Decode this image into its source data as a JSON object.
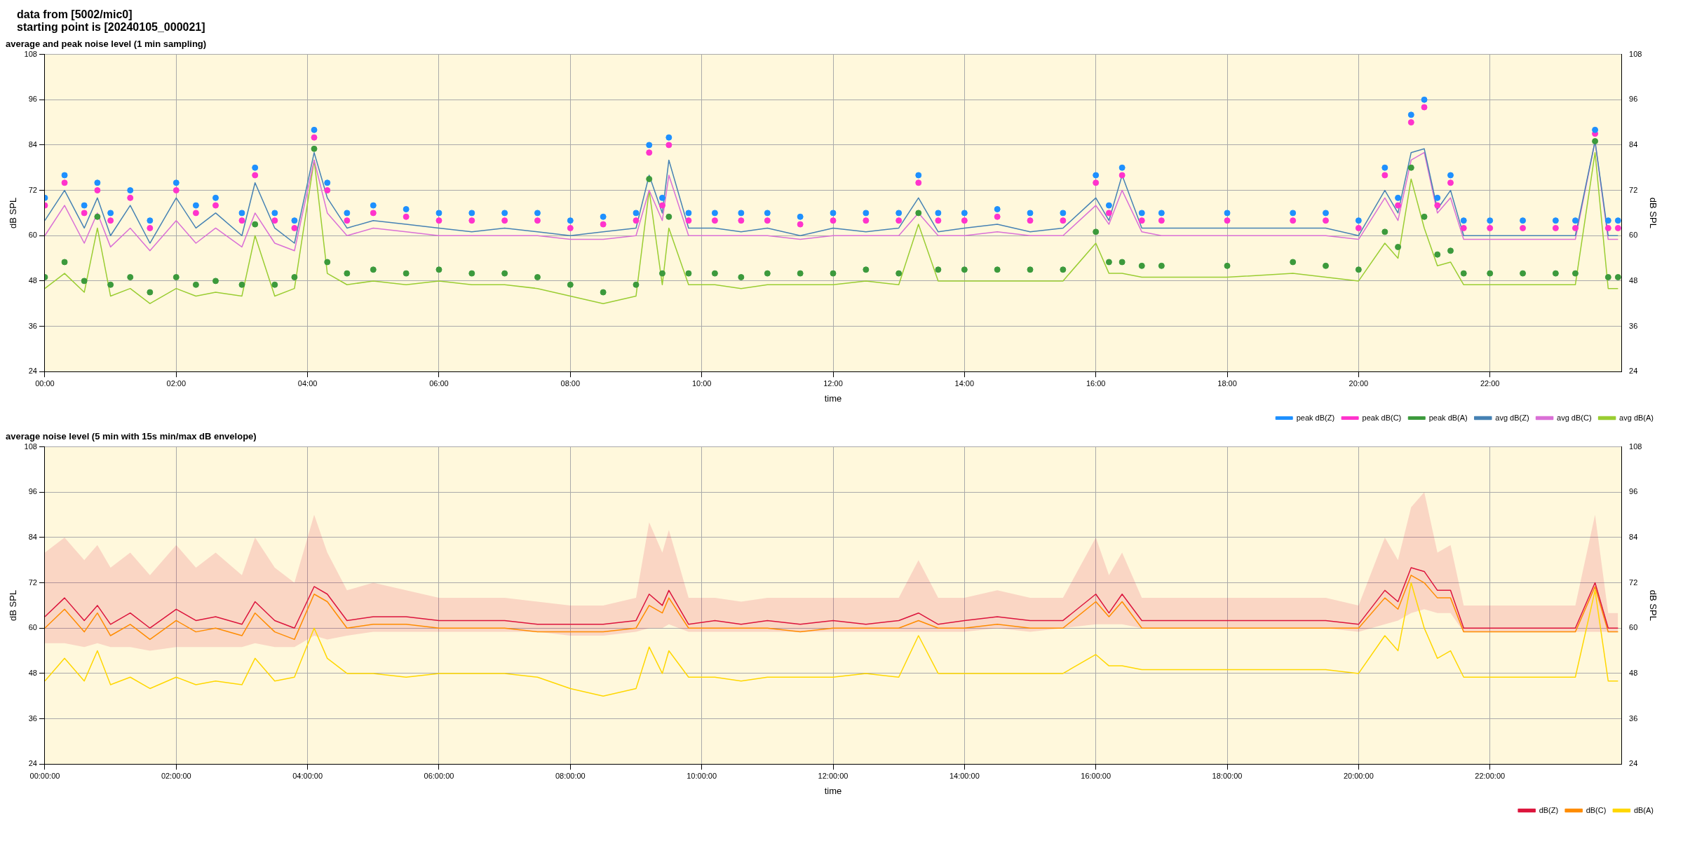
{
  "chart_data": [
    {
      "type": "line",
      "title": "average and peak noise level (1 min sampling)",
      "annotations": [
        "data from [5002/mic0]",
        "starting point is [20240105_000021]"
      ],
      "xlabel": "time",
      "ylabel": "dB SPL",
      "y2label": "dB SPL",
      "xlim": [
        0,
        24
      ],
      "xticks": [
        {
          "value": 0,
          "label": "00:00"
        },
        {
          "value": 2,
          "label": "02:00"
        },
        {
          "value": 4,
          "label": "04:00"
        },
        {
          "value": 6,
          "label": "06:00"
        },
        {
          "value": 8,
          "label": "08:00"
        },
        {
          "value": 10,
          "label": "10:00"
        },
        {
          "value": 12,
          "label": "12:00"
        },
        {
          "value": 14,
          "label": "14:00"
        },
        {
          "value": 16,
          "label": "16:00"
        },
        {
          "value": 18,
          "label": "18:00"
        },
        {
          "value": 20,
          "label": "20:00"
        },
        {
          "value": 22,
          "label": "22:00"
        }
      ],
      "ylim": [
        24,
        108
      ],
      "yticks": [
        24,
        36,
        48,
        60,
        72,
        84,
        96,
        108
      ],
      "y2lim": [
        24,
        108
      ],
      "y2ticks": [
        24,
        36,
        48,
        60,
        72,
        84,
        96,
        108
      ],
      "grid": true,
      "legend": "bottom right",
      "x": [
        0,
        0.3,
        0.6,
        0.8,
        1.0,
        1.3,
        1.6,
        2.0,
        2.3,
        2.6,
        3.0,
        3.2,
        3.5,
        3.8,
        4.1,
        4.3,
        4.6,
        5.0,
        5.5,
        6.0,
        6.5,
        7.0,
        7.5,
        8.0,
        8.5,
        9.0,
        9.2,
        9.4,
        9.5,
        9.8,
        10.2,
        10.6,
        11.0,
        11.5,
        12.0,
        12.5,
        13.0,
        13.3,
        13.6,
        14.0,
        14.5,
        15.0,
        15.5,
        16.0,
        16.2,
        16.4,
        16.7,
        17.0,
        18.0,
        19.0,
        19.5,
        20.0,
        20.4,
        20.6,
        20.8,
        21.0,
        21.2,
        21.4,
        21.6,
        22.0,
        22.5,
        23.0,
        23.3,
        23.6,
        23.8,
        23.95
      ],
      "series": [
        {
          "name": "peak dB(Z)",
          "type": "scatter",
          "marker": "circle",
          "color": "#1e90ff",
          "values": [
            70,
            76,
            68,
            74,
            66,
            72,
            64,
            74,
            68,
            70,
            66,
            78,
            66,
            64,
            88,
            74,
            66,
            68,
            67,
            66,
            66,
            66,
            66,
            64,
            65,
            66,
            84,
            70,
            86,
            66,
            66,
            66,
            66,
            65,
            66,
            66,
            66,
            76,
            66,
            66,
            67,
            66,
            66,
            76,
            68,
            78,
            66,
            66,
            66,
            66,
            66,
            64,
            78,
            70,
            92,
            96,
            70,
            76,
            64,
            64,
            64,
            64,
            64,
            88,
            64,
            64
          ]
        },
        {
          "name": "peak dB(C)",
          "type": "scatter",
          "marker": "circle",
          "color": "#ff33cc",
          "values": [
            68,
            74,
            66,
            72,
            64,
            70,
            62,
            72,
            66,
            68,
            64,
            76,
            64,
            62,
            86,
            72,
            64,
            66,
            65,
            64,
            64,
            64,
            64,
            62,
            63,
            64,
            82,
            68,
            84,
            64,
            64,
            64,
            64,
            63,
            64,
            64,
            64,
            74,
            64,
            64,
            65,
            64,
            64,
            74,
            66,
            76,
            64,
            64,
            64,
            64,
            64,
            62,
            76,
            68,
            90,
            94,
            68,
            74,
            62,
            62,
            62,
            62,
            62,
            87,
            62,
            62
          ]
        },
        {
          "name": "peak dB(A)",
          "type": "scatter",
          "marker": "circle",
          "color": "#3c9a3c",
          "values": [
            49,
            53,
            48,
            65,
            47,
            49,
            45,
            49,
            47,
            48,
            47,
            63,
            47,
            49,
            83,
            53,
            50,
            51,
            50,
            51,
            50,
            50,
            49,
            47,
            45,
            47,
            75,
            50,
            65,
            50,
            50,
            49,
            50,
            50,
            50,
            51,
            50,
            66,
            51,
            51,
            51,
            51,
            51,
            61,
            53,
            53,
            52,
            52,
            52,
            53,
            52,
            51,
            61,
            57,
            78,
            65,
            55,
            56,
            50,
            50,
            50,
            50,
            50,
            85,
            49,
            49
          ]
        },
        {
          "name": "avg dB(Z)",
          "color": "#4682b4",
          "values": [
            64,
            72,
            62,
            70,
            60,
            68,
            58,
            70,
            62,
            66,
            60,
            74,
            62,
            58,
            82,
            70,
            62,
            64,
            63,
            62,
            61,
            62,
            61,
            60,
            61,
            62,
            76,
            66,
            80,
            62,
            62,
            61,
            62,
            60,
            62,
            61,
            62,
            70,
            61,
            62,
            63,
            61,
            62,
            70,
            64,
            76,
            62,
            62,
            62,
            62,
            62,
            60,
            72,
            66,
            82,
            83,
            67,
            72,
            60,
            60,
            60,
            60,
            60,
            85,
            60,
            60
          ]
        },
        {
          "name": "avg dB(C)",
          "color": "#da70d6",
          "values": [
            60,
            68,
            58,
            66,
            57,
            62,
            56,
            64,
            58,
            62,
            57,
            66,
            58,
            56,
            80,
            66,
            60,
            62,
            61,
            60,
            60,
            60,
            60,
            59,
            59,
            60,
            72,
            64,
            76,
            60,
            60,
            60,
            60,
            59,
            60,
            60,
            60,
            66,
            60,
            60,
            61,
            60,
            60,
            68,
            63,
            72,
            61,
            60,
            60,
            60,
            60,
            59,
            70,
            64,
            80,
            82,
            66,
            70,
            59,
            59,
            59,
            59,
            59,
            85,
            59,
            59
          ]
        },
        {
          "name": "avg dB(A)",
          "color": "#9acd32",
          "values": [
            46,
            50,
            45,
            62,
            44,
            46,
            42,
            46,
            44,
            45,
            44,
            60,
            44,
            46,
            80,
            50,
            47,
            48,
            47,
            48,
            47,
            47,
            46,
            44,
            42,
            44,
            72,
            47,
            62,
            47,
            47,
            46,
            47,
            47,
            47,
            48,
            47,
            63,
            48,
            48,
            48,
            48,
            48,
            58,
            50,
            50,
            49,
            49,
            49,
            50,
            49,
            48,
            58,
            54,
            75,
            62,
            52,
            53,
            47,
            47,
            47,
            47,
            47,
            82,
            46,
            46
          ]
        }
      ]
    },
    {
      "type": "line",
      "title": "average noise level (5 min with 15s min/max dB envelope)",
      "xlabel": "time",
      "ylabel": "dB SPL",
      "y2label": "dB SPL",
      "xlim": [
        0,
        24
      ],
      "xticks": [
        {
          "value": 0,
          "label": "00:00:00"
        },
        {
          "value": 2,
          "label": "02:00:00"
        },
        {
          "value": 4,
          "label": "04:00:00"
        },
        {
          "value": 6,
          "label": "06:00:00"
        },
        {
          "value": 8,
          "label": "08:00:00"
        },
        {
          "value": 10,
          "label": "10:00:00"
        },
        {
          "value": 12,
          "label": "12:00:00"
        },
        {
          "value": 14,
          "label": "14:00:00"
        },
        {
          "value": 16,
          "label": "16:00:00"
        },
        {
          "value": 18,
          "label": "18:00:00"
        },
        {
          "value": 20,
          "label": "20:00:00"
        },
        {
          "value": 22,
          "label": "22:00:00"
        }
      ],
      "ylim": [
        24,
        108
      ],
      "yticks": [
        24,
        36,
        48,
        60,
        72,
        84,
        96,
        108
      ],
      "y2lim": [
        24,
        108
      ],
      "y2ticks": [
        24,
        36,
        48,
        60,
        72,
        84,
        96,
        108
      ],
      "grid": true,
      "legend": "bottom right",
      "x": [
        0,
        0.3,
        0.6,
        0.8,
        1.0,
        1.3,
        1.6,
        2.0,
        2.3,
        2.6,
        3.0,
        3.2,
        3.5,
        3.8,
        4.1,
        4.3,
        4.6,
        5.0,
        5.5,
        6.0,
        6.5,
        7.0,
        7.5,
        8.0,
        8.5,
        9.0,
        9.2,
        9.4,
        9.5,
        9.8,
        10.2,
        10.6,
        11.0,
        11.5,
        12.0,
        12.5,
        13.0,
        13.3,
        13.6,
        14.0,
        14.5,
        15.0,
        15.5,
        16.0,
        16.2,
        16.4,
        16.7,
        17.0,
        18.0,
        19.0,
        19.5,
        20.0,
        20.4,
        20.6,
        20.8,
        21.0,
        21.2,
        21.4,
        21.6,
        22.0,
        22.5,
        23.0,
        23.3,
        23.6,
        23.8,
        23.95
      ],
      "series": [
        {
          "name": "dB(Z)",
          "color": "#dc143c",
          "values": [
            63,
            68,
            62,
            66,
            61,
            64,
            60,
            65,
            62,
            63,
            61,
            67,
            62,
            60,
            71,
            69,
            62,
            63,
            63,
            62,
            62,
            62,
            61,
            61,
            61,
            62,
            69,
            66,
            70,
            61,
            62,
            61,
            62,
            61,
            62,
            61,
            62,
            64,
            61,
            62,
            63,
            62,
            62,
            69,
            64,
            69,
            62,
            62,
            62,
            62,
            62,
            61,
            70,
            67,
            76,
            75,
            70,
            70,
            60,
            60,
            60,
            60,
            60,
            72,
            60,
            60
          ],
          "lower": [
            56,
            56,
            55,
            56,
            55,
            55,
            54,
            55,
            55,
            55,
            55,
            56,
            55,
            55,
            58,
            57,
            58,
            59,
            59,
            59,
            59,
            59,
            59,
            58,
            58,
            59,
            60,
            60,
            61,
            59,
            59,
            59,
            59,
            59,
            59,
            59,
            59,
            59,
            59,
            59,
            60,
            59,
            60,
            61,
            61,
            61,
            60,
            60,
            60,
            60,
            60,
            59,
            61,
            62,
            64,
            65,
            64,
            64,
            59,
            59,
            59,
            59,
            59,
            59,
            59,
            59
          ],
          "upper": [
            80,
            84,
            78,
            82,
            76,
            80,
            74,
            82,
            76,
            80,
            74,
            84,
            76,
            72,
            90,
            80,
            70,
            72,
            70,
            68,
            68,
            68,
            67,
            66,
            66,
            68,
            88,
            80,
            86,
            68,
            68,
            67,
            68,
            68,
            68,
            68,
            68,
            78,
            68,
            68,
            70,
            68,
            68,
            84,
            74,
            80,
            68,
            68,
            68,
            68,
            68,
            66,
            84,
            78,
            92,
            96,
            80,
            82,
            66,
            66,
            66,
            66,
            66,
            90,
            64,
            64
          ]
        },
        {
          "name": "dB(C)",
          "color": "#ff8c00",
          "values": [
            60,
            65,
            59,
            64,
            58,
            61,
            57,
            62,
            59,
            60,
            58,
            64,
            59,
            57,
            69,
            67,
            60,
            61,
            61,
            60,
            60,
            60,
            59,
            59,
            59,
            60,
            66,
            64,
            68,
            60,
            60,
            60,
            60,
            59,
            60,
            60,
            60,
            62,
            60,
            60,
            61,
            60,
            60,
            67,
            63,
            67,
            60,
            60,
            60,
            60,
            60,
            60,
            68,
            65,
            74,
            72,
            68,
            68,
            59,
            59,
            59,
            59,
            59,
            71,
            59,
            59
          ]
        },
        {
          "name": "dB(A)",
          "color": "#ffd700",
          "values": [
            46,
            52,
            46,
            54,
            45,
            47,
            44,
            47,
            45,
            46,
            45,
            52,
            46,
            47,
            60,
            52,
            48,
            48,
            47,
            48,
            48,
            48,
            47,
            44,
            42,
            44,
            55,
            48,
            54,
            47,
            47,
            46,
            47,
            47,
            47,
            48,
            47,
            58,
            48,
            48,
            48,
            48,
            48,
            53,
            50,
            50,
            49,
            49,
            49,
            49,
            49,
            48,
            58,
            54,
            72,
            60,
            52,
            54,
            47,
            47,
            47,
            47,
            47,
            70,
            46,
            46
          ]
        }
      ]
    }
  ]
}
